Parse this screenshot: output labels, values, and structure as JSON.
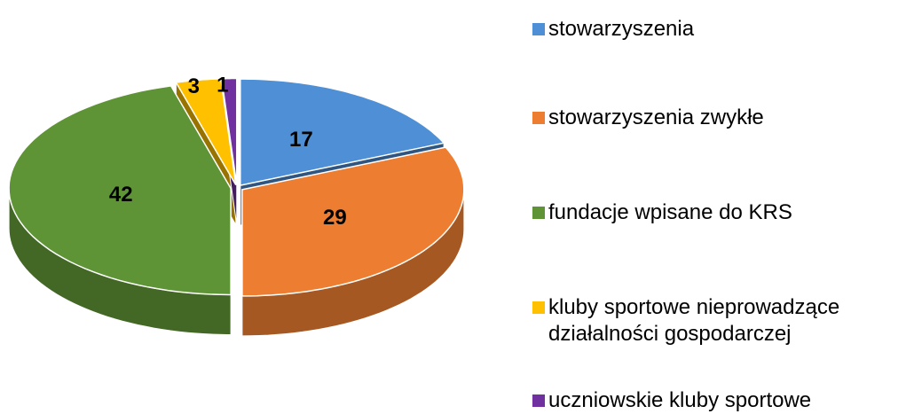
{
  "chart_data": {
    "type": "pie",
    "categories": [
      "stowarzyszenia",
      "stowarzyszenia zwykłe",
      "fundacje wpisane do KRS",
      "kluby sportowe nieprowadzące działalności gospodarczej",
      "uczniowskie kluby sportowe"
    ],
    "values": [
      17,
      29,
      42,
      3,
      1
    ],
    "colors": [
      "#4f8fd6",
      "#ed7d31",
      "#5f9436",
      "#ffc000",
      "#7030a0"
    ],
    "legend": "right"
  }
}
